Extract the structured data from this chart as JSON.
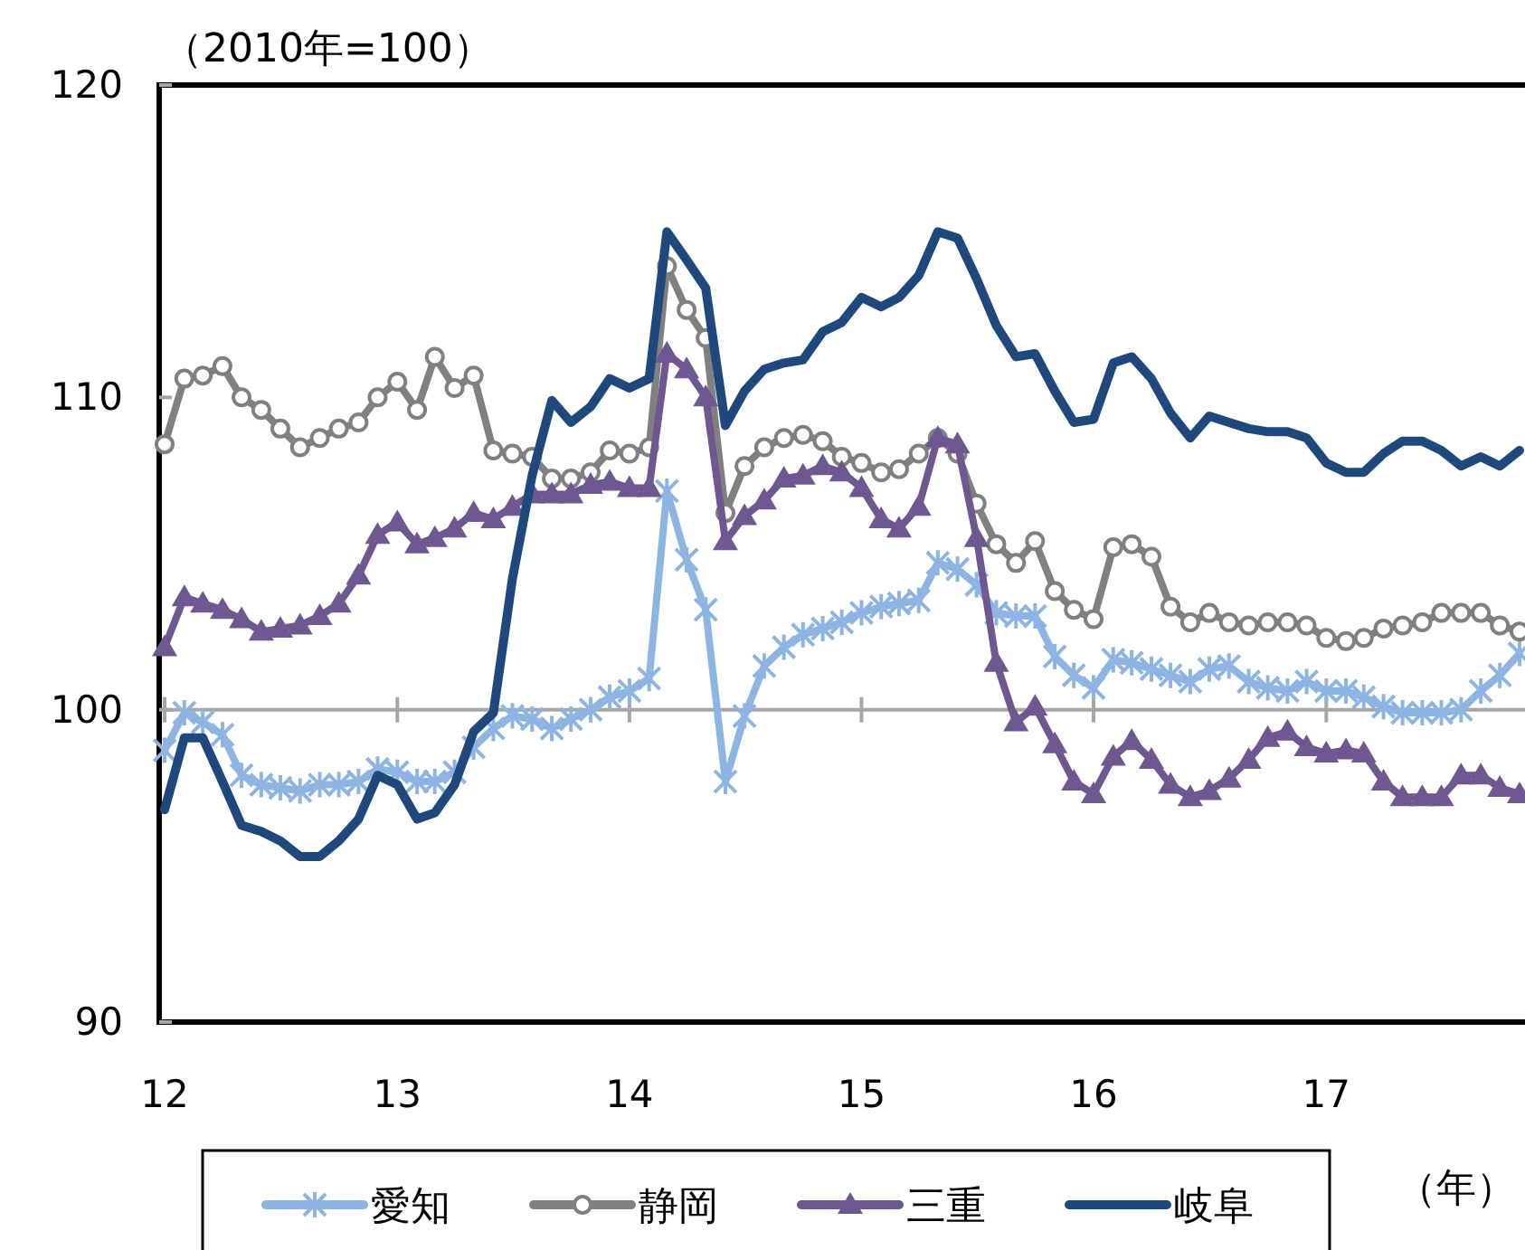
{
  "chart_data": {
    "type": "line",
    "ylabel": "（2010年=100）",
    "xlabel": "（年）",
    "x": [
      "2012-01",
      "2012-02",
      "2012-03",
      "2012-04",
      "2012-05",
      "2012-06",
      "2012-07",
      "2012-08",
      "2012-09",
      "2012-10",
      "2012-11",
      "2012-12",
      "2013-01",
      "2013-02",
      "2013-03",
      "2013-04",
      "2013-05",
      "2013-06",
      "2013-07",
      "2013-08",
      "2013-09",
      "2013-10",
      "2013-11",
      "2013-12",
      "2014-01",
      "2014-02",
      "2014-03",
      "2014-04",
      "2014-05",
      "2014-06",
      "2014-07",
      "2014-08",
      "2014-09",
      "2014-10",
      "2014-11",
      "2014-12",
      "2015-01",
      "2015-02",
      "2015-03",
      "2015-04",
      "2015-05",
      "2015-06",
      "2015-07",
      "2015-08",
      "2015-09",
      "2015-10",
      "2015-11",
      "2015-12",
      "2016-01",
      "2016-02",
      "2016-03",
      "2016-04",
      "2016-05",
      "2016-06",
      "2016-07",
      "2016-08",
      "2016-09",
      "2016-10",
      "2016-11",
      "2016-12",
      "2017-01",
      "2017-02",
      "2017-03",
      "2017-04",
      "2017-05",
      "2017-06",
      "2017-07",
      "2017-08",
      "2017-09",
      "2017-10",
      "2017-11"
    ],
    "xlim": [
      "2012-01",
      "2017-11"
    ],
    "xticks": [
      {
        "value": "2012-01",
        "label": "12"
      },
      {
        "value": "2013-01",
        "label": "13"
      },
      {
        "value": "2014-01",
        "label": "14"
      },
      {
        "value": "2015-01",
        "label": "15"
      },
      {
        "value": "2016-01",
        "label": "16"
      },
      {
        "value": "2017-01",
        "label": "17"
      }
    ],
    "ylim": [
      90,
      120
    ],
    "yticks": [
      90,
      100,
      110,
      120
    ],
    "ref_lines": [
      {
        "axis": "y",
        "value": 100,
        "color": "#a6a6a6"
      }
    ],
    "legend": "bottom",
    "series": [
      {
        "name": "愛知",
        "color": "#8db4e2",
        "marker": "cross",
        "values": [
          98.7,
          99.9,
          99.6,
          99.2,
          97.9,
          97.6,
          97.5,
          97.4,
          97.6,
          97.6,
          97.7,
          98.1,
          98.0,
          97.7,
          97.7,
          98.0,
          98.8,
          99.4,
          99.8,
          99.7,
          99.4,
          99.7,
          100.0,
          100.4,
          100.6,
          101.0,
          107.0,
          104.8,
          103.2,
          97.7,
          99.8,
          101.4,
          102.0,
          102.4,
          102.6,
          102.8,
          103.1,
          103.3,
          103.4,
          103.5,
          104.7,
          104.5,
          104.0,
          103.1,
          103.0,
          103.0,
          101.7,
          101.1,
          100.7,
          101.6,
          101.5,
          101.3,
          101.1,
          100.9,
          101.3,
          101.4,
          100.9,
          100.7,
          100.6,
          100.9,
          100.6,
          100.6,
          100.4,
          100.1,
          99.9,
          99.9,
          99.9,
          100.0,
          100.6,
          101.1,
          101.8
        ]
      },
      {
        "name": "静岡",
        "color": "#808080",
        "marker": "circle",
        "values": [
          108.5,
          110.6,
          110.7,
          111.0,
          110.0,
          109.6,
          109.0,
          108.4,
          108.7,
          109.0,
          109.2,
          110.0,
          110.5,
          109.6,
          111.3,
          110.3,
          110.7,
          108.3,
          108.2,
          108.1,
          107.4,
          107.4,
          107.6,
          108.3,
          108.2,
          108.4,
          114.2,
          112.8,
          111.9,
          106.3,
          107.8,
          108.4,
          108.7,
          108.8,
          108.6,
          108.1,
          107.9,
          107.6,
          107.7,
          108.2,
          108.7,
          108.2,
          106.6,
          105.3,
          104.7,
          105.4,
          103.8,
          103.2,
          102.9,
          105.2,
          105.3,
          104.9,
          103.3,
          102.8,
          103.1,
          102.8,
          102.7,
          102.8,
          102.8,
          102.7,
          102.3,
          102.2,
          102.3,
          102.6,
          102.7,
          102.8,
          103.1,
          103.1,
          103.1,
          102.7,
          102.5
        ]
      },
      {
        "name": "三重",
        "color": "#6f5791",
        "marker": "triangle",
        "values": [
          102.0,
          103.6,
          103.4,
          103.2,
          102.9,
          102.5,
          102.6,
          102.7,
          103.0,
          103.4,
          104.3,
          105.6,
          106.0,
          105.3,
          105.5,
          105.8,
          106.3,
          106.1,
          106.5,
          106.9,
          106.9,
          106.9,
          107.2,
          107.3,
          107.1,
          107.1,
          111.4,
          110.9,
          110.0,
          105.4,
          106.2,
          106.7,
          107.4,
          107.5,
          107.8,
          107.6,
          107.1,
          106.1,
          105.8,
          106.5,
          108.7,
          108.5,
          105.5,
          101.5,
          99.6,
          100.1,
          98.9,
          97.7,
          97.3,
          98.5,
          99.0,
          98.4,
          97.6,
          97.2,
          97.4,
          97.8,
          98.4,
          99.1,
          99.3,
          98.8,
          98.6,
          98.7,
          98.6,
          97.7,
          97.2,
          97.2,
          97.2,
          97.9,
          97.9,
          97.5,
          97.3
        ]
      },
      {
        "name": "岐阜",
        "color": "#1f497d",
        "marker": "none",
        "values": [
          96.8,
          99.1,
          99.1,
          97.7,
          96.3,
          96.1,
          95.8,
          95.3,
          95.3,
          95.8,
          96.5,
          97.9,
          97.6,
          96.5,
          96.7,
          97.6,
          99.3,
          99.9,
          104.2,
          107.5,
          109.9,
          109.2,
          109.7,
          110.6,
          110.3,
          110.6,
          115.3,
          114.4,
          113.5,
          109.1,
          110.2,
          110.9,
          111.1,
          111.2,
          112.1,
          112.4,
          113.2,
          112.9,
          113.2,
          113.9,
          115.3,
          115.1,
          113.8,
          112.3,
          111.3,
          111.4,
          110.2,
          109.2,
          109.3,
          111.1,
          111.3,
          110.6,
          109.5,
          108.7,
          109.4,
          109.2,
          109.0,
          108.9,
          108.9,
          108.7,
          107.9,
          107.6,
          107.6,
          108.2,
          108.6,
          108.6,
          108.3,
          107.8,
          108.1,
          107.8,
          108.3
        ]
      }
    ]
  }
}
